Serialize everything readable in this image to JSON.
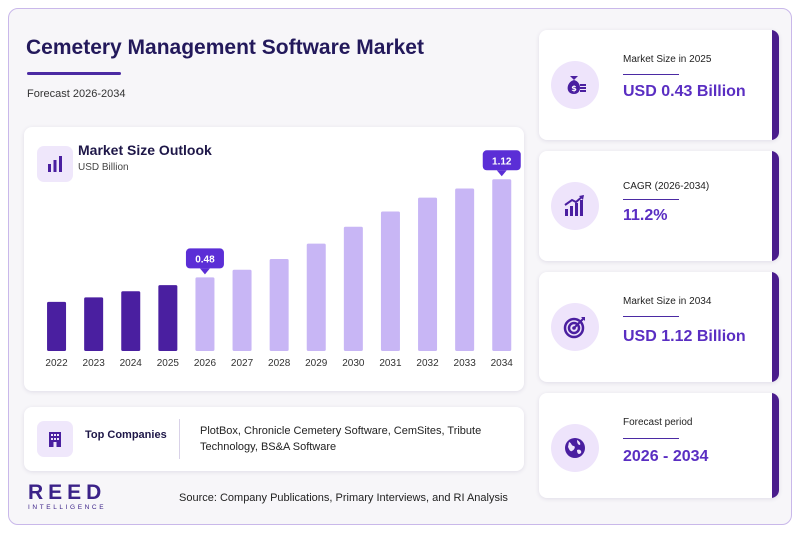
{
  "header": {
    "title": "Cemetery Management Software Market",
    "subtitle": "Forecast 2026-2034"
  },
  "chart": {
    "title": "Market Size Outlook",
    "unit": "USD Billion"
  },
  "chart_data": {
    "type": "bar",
    "title": "Market Size Outlook",
    "ylabel": "USD Billion",
    "categories": [
      "2022",
      "2023",
      "2024",
      "2025",
      "2026",
      "2027",
      "2028",
      "2029",
      "2030",
      "2031",
      "2032",
      "2033",
      "2034"
    ],
    "values": [
      0.32,
      0.35,
      0.39,
      0.43,
      0.48,
      0.53,
      0.6,
      0.7,
      0.81,
      0.91,
      1.0,
      1.06,
      1.12
    ],
    "ylim": [
      0,
      1.2
    ],
    "grid": false,
    "callouts": [
      {
        "category": "2026",
        "label": "0.48"
      },
      {
        "category": "2034",
        "label": "1.12"
      }
    ],
    "colors": {
      "historical": "#4a1fa0",
      "forecast": "#c8b6f5",
      "callout": "#5b2ed6"
    }
  },
  "companies": {
    "label": "Top Companies",
    "text": "PlotBox, Chronicle Cemetery Software, CemSites, Tribute Technology, BS&A Software"
  },
  "logo": {
    "main": "REED",
    "sub": "INTELLIGENCE"
  },
  "source": "Source: Company Publications, Primary Interviews, and RI Analysis",
  "stats": [
    {
      "label": "Market Size in 2025",
      "value": "USD 0.43 Billion",
      "icon": "money-bag-icon"
    },
    {
      "label": "CAGR (2026-2034)",
      "value": "11.2%",
      "icon": "growth-chart-icon"
    },
    {
      "label": "Market Size in 2034",
      "value": "USD 1.12 Billion",
      "icon": "target-icon"
    },
    {
      "label": "Forecast period",
      "value": "2026 - 2034",
      "icon": "globe-icon"
    }
  ],
  "colors": {
    "accent": "#5a2ec2",
    "dark": "#23195b",
    "card_edge": "#4a1d8c"
  }
}
